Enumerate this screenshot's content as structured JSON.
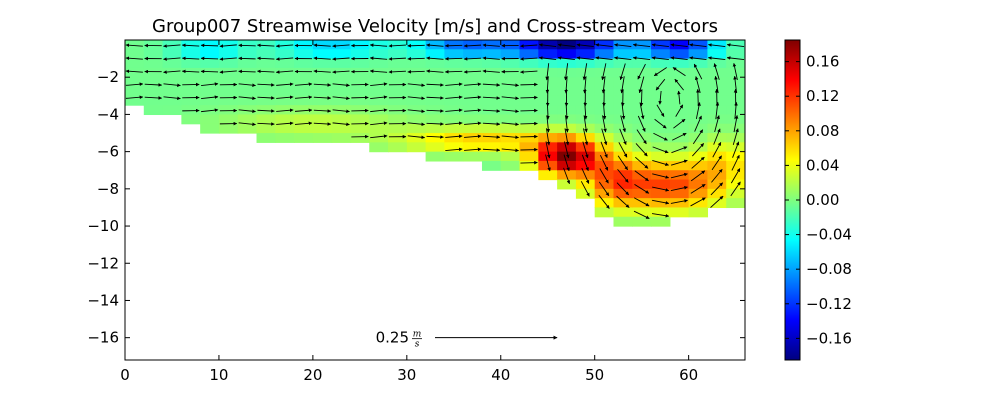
{
  "chart_data": {
    "type": "heatmap",
    "title": "Group007 Streamwise Velocity [m/s] and Cross-stream Vectors",
    "xlabel": "",
    "ylabel": "",
    "xlim": [
      0,
      66
    ],
    "ylim": [
      -17.2,
      0
    ],
    "x_ticks": [
      0,
      10,
      20,
      30,
      40,
      50,
      60
    ],
    "x_tick_labels": [
      "0",
      "10",
      "20",
      "30",
      "40",
      "50",
      "60"
    ],
    "y_ticks": [
      -2,
      -4,
      -6,
      -8,
      -10,
      -12,
      -14,
      -16
    ],
    "y_tick_labels": [
      "−2",
      "−4",
      "−6",
      "−8",
      "−10",
      "−12",
      "−14",
      "−16"
    ],
    "colorbar": {
      "min": -0.185,
      "max": 0.185,
      "colormap": "jet",
      "ticks": [
        0.16,
        0.12,
        0.08,
        0.04,
        0.0,
        -0.04,
        -0.08,
        -0.12,
        -0.16
      ],
      "tick_labels": [
        "0.16",
        "0.12",
        "0.08",
        "0.04",
        "0.00",
        "−0.04",
        "−0.08",
        "−0.12",
        "−0.16"
      ]
    },
    "reference_vector": {
      "label": "0.25",
      "unit_numerator": "m",
      "unit_denominator": "s",
      "x_start": 33,
      "x_end": 46,
      "y": -16
    },
    "grid": false,
    "cells": {
      "cell_width": 2,
      "cell_height": 0.5,
      "bottom_profile": [
        [
          0,
          -3.3
        ],
        [
          2,
          -3.6
        ],
        [
          4,
          -3.8
        ],
        [
          6,
          -4.2
        ],
        [
          8,
          -4.5
        ],
        [
          10,
          -4.7
        ],
        [
          14,
          -5.0
        ],
        [
          20,
          -5.2
        ],
        [
          26,
          -5.5
        ],
        [
          30,
          -5.8
        ],
        [
          34,
          -6.1
        ],
        [
          38,
          -6.5
        ],
        [
          42,
          -6.8
        ],
        [
          46,
          -7.3
        ],
        [
          48,
          -8.0
        ],
        [
          50,
          -8.8
        ],
        [
          52,
          -9.4
        ],
        [
          54,
          -9.7
        ],
        [
          58,
          -9.6
        ],
        [
          62,
          -9.1
        ],
        [
          66,
          -8.6
        ]
      ],
      "hotspots": [
        {
          "x": 47,
          "y": -0.4,
          "value": -0.19,
          "sx": 6,
          "sy": 0.6
        },
        {
          "x": 36,
          "y": -0.4,
          "value": -0.1,
          "sx": 5,
          "sy": 0.5
        },
        {
          "x": 59,
          "y": -0.4,
          "value": -0.14,
          "sx": 4,
          "sy": 0.6
        },
        {
          "x": 22,
          "y": -0.4,
          "value": -0.06,
          "sx": 6,
          "sy": 0.6
        },
        {
          "x": 9,
          "y": -0.5,
          "value": -0.05,
          "sx": 4,
          "sy": 0.6
        },
        {
          "x": 47,
          "y": -6.3,
          "value": 0.19,
          "sx": 3.5,
          "sy": 1.0
        },
        {
          "x": 38,
          "y": -5.4,
          "value": 0.07,
          "sx": 9,
          "sy": 0.7
        },
        {
          "x": 58,
          "y": -7.8,
          "value": 0.12,
          "sx": 6,
          "sy": 1.4
        },
        {
          "x": 52,
          "y": -7.5,
          "value": 0.08,
          "sx": 3,
          "sy": 1.5
        },
        {
          "x": 64,
          "y": -6.5,
          "value": 0.05,
          "sx": 3,
          "sy": 1.3
        },
        {
          "x": 20,
          "y": -4.5,
          "value": 0.03,
          "sx": 10,
          "sy": 0.8
        }
      ],
      "base_value": -0.005
    },
    "vectors": {
      "spacing_x": 2,
      "spacing_y": 0.7,
      "description_free": true,
      "vortex_center": [
        58,
        -3.2
      ]
    }
  }
}
